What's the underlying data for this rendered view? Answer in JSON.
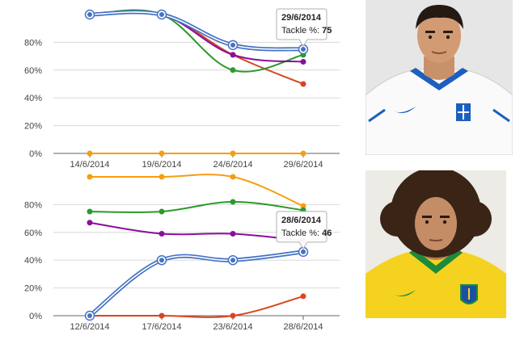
{
  "colors": {
    "blue": "#4572c4",
    "purple": "#8b0f9b",
    "green": "#2a9a2a",
    "red": "#d9461f",
    "orange": "#f59e10",
    "axis": "#666666",
    "grid": "#d8d8d8"
  },
  "chart_data": [
    {
      "type": "line",
      "x": [
        "14/6/2014",
        "19/6/2014",
        "24/6/2014",
        "29/6/2014"
      ],
      "ylim": [
        0,
        100
      ],
      "yticks": [
        "0%",
        "20%",
        "40%",
        "60%",
        "80%"
      ],
      "grid": true,
      "legend": "none",
      "series": [
        {
          "color": "orange",
          "values": [
            0,
            0,
            0,
            0
          ]
        },
        {
          "color": "red",
          "values": [
            100,
            100,
            71,
            50
          ]
        },
        {
          "color": "green",
          "values": [
            100,
            100,
            60,
            71
          ]
        },
        {
          "color": "purple",
          "values": [
            100,
            100,
            71,
            66
          ]
        },
        {
          "color": "blue",
          "values": [
            100,
            100,
            78,
            75
          ],
          "highlight": true
        }
      ],
      "tooltip": {
        "point_index": 3,
        "date": "29/6/2014",
        "label": "Tackle %:",
        "value": "75"
      }
    },
    {
      "type": "line",
      "x": [
        "12/6/2014",
        "17/6/2014",
        "23/6/2014",
        "28/6/2014"
      ],
      "ylim": [
        0,
        100
      ],
      "yticks": [
        "0%",
        "20%",
        "40%",
        "60%",
        "80%"
      ],
      "grid": true,
      "legend": "none",
      "series": [
        {
          "color": "orange",
          "values": [
            100,
            100,
            100,
            79
          ]
        },
        {
          "color": "green",
          "values": [
            75,
            75,
            82,
            76
          ]
        },
        {
          "color": "purple",
          "values": [
            67,
            59,
            59,
            54
          ]
        },
        {
          "color": "red",
          "values": [
            0,
            0,
            0,
            14
          ]
        },
        {
          "color": "blue",
          "values": [
            0,
            40,
            40,
            46
          ],
          "highlight": true
        }
      ],
      "tooltip": {
        "point_index": 3,
        "date": "28/6/2014",
        "label": "Tackle %:",
        "value": "46"
      }
    }
  ],
  "photos": [
    {
      "subject": "player-greece-number-4"
    },
    {
      "subject": "player-brazil"
    }
  ]
}
